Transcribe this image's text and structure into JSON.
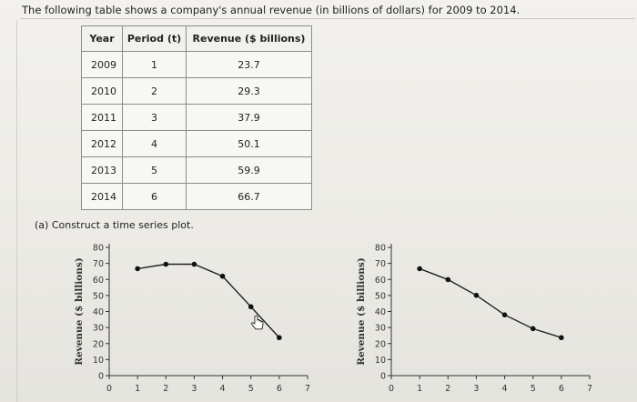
{
  "prompt": "The following table shows a company's annual revenue (in billions of dollars) for 2009 to 2014.",
  "table": {
    "headers": [
      "Year",
      "Period (t)",
      "Revenue ($ billions)"
    ],
    "rows": [
      [
        "2009",
        "1",
        "23.7"
      ],
      [
        "2010",
        "2",
        "29.3"
      ],
      [
        "2011",
        "3",
        "37.9"
      ],
      [
        "2012",
        "4",
        "50.1"
      ],
      [
        "2013",
        "5",
        "59.9"
      ],
      [
        "2014",
        "6",
        "66.7"
      ]
    ]
  },
  "part_a": "(a)  Construct a time series plot.",
  "chart_data": [
    {
      "type": "line",
      "ylabel": "Revenue ($ billions)",
      "x": [
        1,
        2,
        3,
        4,
        5,
        6
      ],
      "y": [
        66.7,
        69.5,
        69.5,
        62,
        43,
        23.7
      ],
      "xlim": [
        0,
        7
      ],
      "ylim": [
        0,
        80
      ],
      "xticks": [
        "0",
        "1",
        "2",
        "3",
        "4",
        "5",
        "6",
        "7"
      ],
      "yticks": [
        "0",
        "10",
        "20",
        "30",
        "40",
        "50",
        "60",
        "70",
        "80"
      ]
    },
    {
      "type": "line",
      "ylabel": "Revenue ($ billions)",
      "x": [
        1,
        2,
        3,
        4,
        5,
        6
      ],
      "y": [
        66.7,
        59.9,
        50.1,
        37.9,
        29.3,
        23.7
      ],
      "xlim": [
        0,
        7
      ],
      "ylim": [
        0,
        80
      ],
      "xticks": [
        "0",
        "1",
        "2",
        "3",
        "4",
        "5",
        "6",
        "7"
      ],
      "yticks": [
        "0",
        "10",
        "20",
        "30",
        "40",
        "50",
        "60",
        "70",
        "80"
      ]
    }
  ],
  "colors": {
    "line": "#222222",
    "marker": "#111111",
    "axis": "#333333"
  },
  "icons": {
    "cursor": "hand-pointer-icon"
  }
}
